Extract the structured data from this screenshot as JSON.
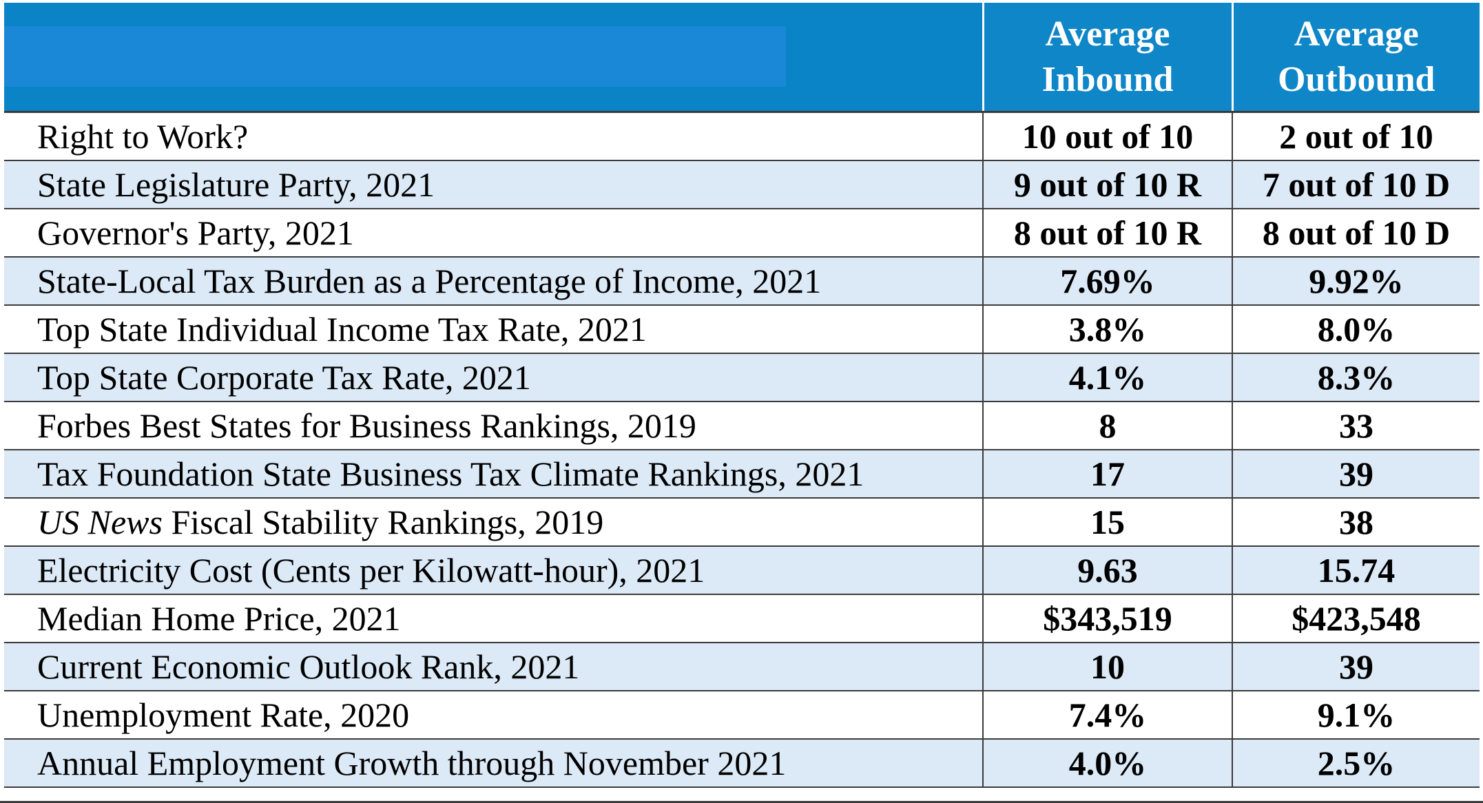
{
  "header": {
    "col_inbound": [
      "Average",
      "Inbound"
    ],
    "col_outbound": [
      "Average",
      "Outbound"
    ],
    "colors": {
      "header_bg": "#0f86c7",
      "row_shade": "#dce9f6"
    }
  },
  "rows": [
    {
      "label": "Right to Work?",
      "inbound": "10 out of 10",
      "outbound": "2 out of 10"
    },
    {
      "label": "State Legislature Party, 2021",
      "inbound": "9 out of 10 R",
      "outbound": "7 out of 10 D"
    },
    {
      "label": "Governor's Party, 2021",
      "inbound": "8 out of 10 R",
      "outbound": "8 out of 10 D"
    },
    {
      "label": "State-Local Tax Burden as a Percentage of Income, 2021",
      "inbound": "7.69%",
      "outbound": "9.92%"
    },
    {
      "label": "Top State Individual Income Tax Rate, 2021",
      "inbound": "3.8%",
      "outbound": "8.0%"
    },
    {
      "label": "Top State Corporate Tax Rate, 2021",
      "inbound": "4.1%",
      "outbound": "8.3%"
    },
    {
      "label": "Forbes Best States for Business Rankings, 2019",
      "inbound": "8",
      "outbound": "33"
    },
    {
      "label": "Tax Foundation State Business Tax Climate Rankings, 2021",
      "inbound": "17",
      "outbound": "39"
    },
    {
      "label_italic": "US News",
      "label": " Fiscal Stability Rankings, 2019",
      "inbound": "15",
      "outbound": "38"
    },
    {
      "label": "Electricity Cost (Cents per Kilowatt-hour), 2021",
      "inbound": "9.63",
      "outbound": "15.74"
    },
    {
      "label": "Median Home Price, 2021",
      "inbound": "$343,519",
      "outbound": "$423,548"
    },
    {
      "label": "Current Economic Outlook Rank, 2021",
      "inbound": "10",
      "outbound": "39"
    },
    {
      "label": "Unemployment Rate, 2020",
      "inbound": "7.4%",
      "outbound": "9.1%"
    },
    {
      "label": "Annual Employment Growth through November 2021",
      "inbound": "4.0%",
      "outbound": "2.5%"
    }
  ]
}
